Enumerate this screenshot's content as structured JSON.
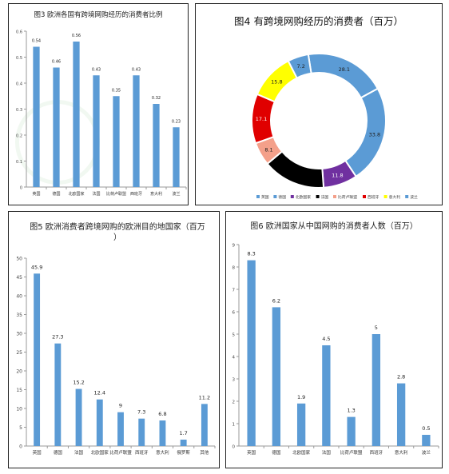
{
  "chart_data": [
    {
      "type": "bar",
      "title": "图3  欧洲各国有跨境网购经历的消费者比例",
      "categories": [
        "英国",
        "德国",
        "北欧国家",
        "法国",
        "比荷卢联盟",
        "西班牙",
        "意大利",
        "波兰"
      ],
      "values": [
        0.54,
        0.46,
        0.56,
        0.43,
        0.35,
        0.43,
        0.32,
        0.23
      ],
      "value_labels": [
        "0.54",
        "0.46",
        "0.56",
        "0.43",
        "0.35",
        "0.43",
        "0.32",
        "0.23"
      ],
      "ylim": [
        0,
        0.6
      ],
      "yticks": [
        0,
        0.1,
        0.2,
        0.3,
        0.4,
        0.5,
        0.6
      ],
      "ytick_labels": [
        "0",
        "0.1",
        "0.2",
        "0.3",
        "0.4",
        "0.5",
        "0.6"
      ],
      "color": "#5B9BD5",
      "grid": false
    },
    {
      "type": "pie",
      "title": "图4  有跨境网购经历的消费者（百万）",
      "categories": [
        "英国",
        "德国",
        "北欧国家",
        "法国",
        "比荷卢联盟",
        "西班牙",
        "意大利",
        "波兰"
      ],
      "values": [
        28.1,
        33.8,
        11.8,
        21.6,
        8.1,
        17.1,
        15.8,
        7.2
      ],
      "value_labels": [
        "28.1",
        "33.8",
        "11.8",
        "",
        "8.1",
        "17.1",
        "15.8",
        "7.2"
      ],
      "colors": [
        "#5B9BD5",
        "#5B9BD5",
        "#7030A0",
        "#000000",
        "#F4A08A",
        "#E00000",
        "#FFFF00",
        "#5B9BD5"
      ],
      "legend_position": "bottom"
    },
    {
      "type": "bar",
      "title_line1": "图5  欧洲消费者跨境网购的欧洲目的地国家（百万",
      "title_line2": "）",
      "categories": [
        "英国",
        "德国",
        "法国",
        "北欧国家",
        "比荷卢联盟",
        "西班牙",
        "意大利",
        "俄罗斯",
        "其他"
      ],
      "values": [
        45.9,
        27.3,
        15.2,
        12.4,
        9,
        7.3,
        6.8,
        1.7,
        11.2
      ],
      "value_labels": [
        "45.9",
        "27.3",
        "15.2",
        "12.4",
        "9",
        "7.3",
        "6.8",
        "1.7",
        "11.2"
      ],
      "ylim": [
        0,
        50
      ],
      "yticks": [
        0,
        5,
        10,
        15,
        20,
        25,
        30,
        35,
        40,
        45,
        50
      ],
      "ytick_labels": [
        "0",
        "5",
        "10",
        "15",
        "20",
        "25",
        "30",
        "35",
        "40",
        "45",
        "50"
      ],
      "color": "#5B9BD5",
      "grid": false
    },
    {
      "type": "bar",
      "title": "图6  欧洲国家从中国网购的消费者人数（百万）",
      "categories": [
        "英国",
        "德国",
        "北欧国家",
        "法国",
        "比荷卢联盟",
        "西班牙",
        "意大利",
        "波兰"
      ],
      "values": [
        8.3,
        6.2,
        1.9,
        4.5,
        1.3,
        5,
        2.8,
        0.5
      ],
      "value_labels": [
        "8.3",
        "6.2",
        "1.9",
        "4.5",
        "1.3",
        "5",
        "2.8",
        "0.5"
      ],
      "ylim": [
        0,
        9
      ],
      "yticks": [
        0,
        1,
        2,
        3,
        4,
        5,
        6,
        7,
        8,
        9
      ],
      "ytick_labels": [
        "0",
        "1",
        "2",
        "3",
        "4",
        "5",
        "6",
        "7",
        "8",
        "9"
      ],
      "color": "#5B9BD5",
      "grid": false
    }
  ]
}
